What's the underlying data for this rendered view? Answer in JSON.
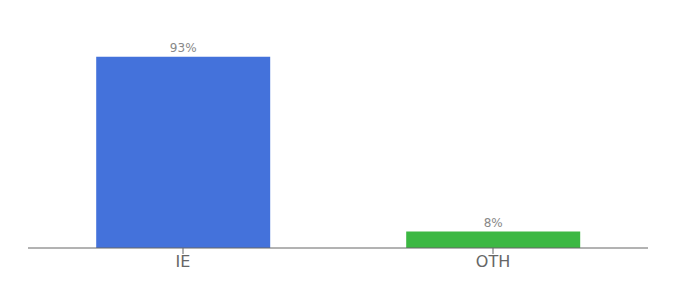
{
  "chart_data": {
    "type": "bar",
    "categories": [
      "IE",
      "OTH"
    ],
    "values": [
      93,
      8
    ],
    "value_labels": [
      "93%",
      "8%"
    ],
    "colors": [
      "#4472db",
      "#3cb843"
    ],
    "ylim": [
      0,
      105
    ],
    "tick_labels": "x",
    "grid": false
  }
}
